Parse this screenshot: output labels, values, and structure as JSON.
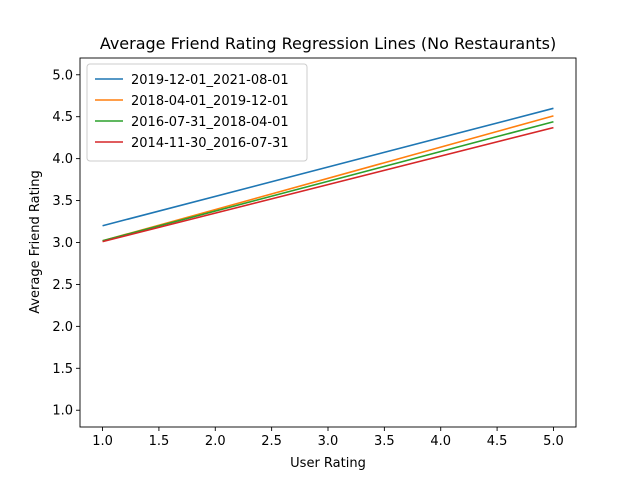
{
  "chart_data": {
    "type": "line",
    "title": "Average Friend Rating Regression Lines (No Restaurants)",
    "xlabel": "User Rating",
    "ylabel": "Average Friend Rating",
    "xlim": [
      0.8,
      5.2
    ],
    "ylim": [
      0.8,
      5.2
    ],
    "xticks": [
      "1.0",
      "1.5",
      "2.0",
      "2.5",
      "3.0",
      "3.5",
      "4.0",
      "4.5",
      "5.0"
    ],
    "yticks": [
      "1.0",
      "1.5",
      "2.0",
      "2.5",
      "3.0",
      "3.5",
      "4.0",
      "4.5",
      "5.0"
    ],
    "grid": false,
    "legend_position": "top-left",
    "series": [
      {
        "name": "2019-12-01_2021-08-01",
        "color": "#1f77b4",
        "x": [
          1.0,
          5.0
        ],
        "y": [
          3.2,
          4.6
        ]
      },
      {
        "name": "2018-04-01_2019-12-01",
        "color": "#ff7f0e",
        "x": [
          1.0,
          5.0
        ],
        "y": [
          3.02,
          4.51
        ]
      },
      {
        "name": "2016-07-31_2018-04-01",
        "color": "#2ca02c",
        "x": [
          1.0,
          5.0
        ],
        "y": [
          3.02,
          4.44
        ]
      },
      {
        "name": "2014-11-30_2016-07-31",
        "color": "#d62728",
        "x": [
          1.0,
          5.0
        ],
        "y": [
          3.01,
          4.37
        ]
      }
    ]
  }
}
